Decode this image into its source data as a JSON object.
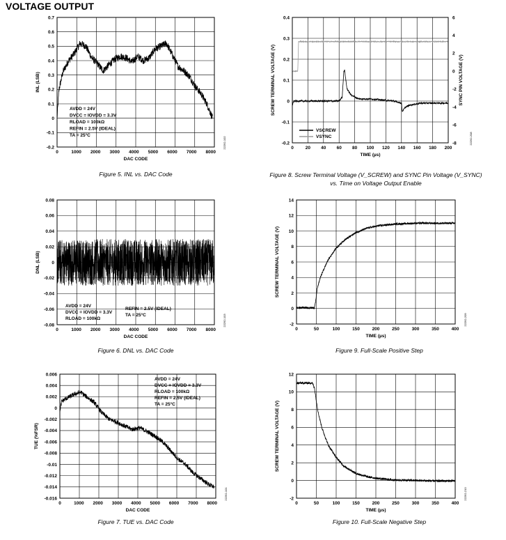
{
  "section_title": "VOLTAGE OUTPUT",
  "chart_data": [
    {
      "id": "fig5",
      "type": "line",
      "caption": "Figure 5. INL vs. DAC Code",
      "side_code": "22292-102",
      "xlabel": "DAC CODE",
      "ylabel": "INL (LSB)",
      "xlim": [
        0,
        8192
      ],
      "ylim": [
        -0.2,
        0.7
      ],
      "xticks": [
        0,
        1000,
        2000,
        3000,
        4000,
        5000,
        6000,
        7000,
        8000
      ],
      "yticks": [
        -0.2,
        -0.1,
        0,
        0.1,
        0.2,
        0.3,
        0.4,
        0.5,
        0.6,
        0.7
      ],
      "grid": true,
      "annotation": [
        "AVDD = 24V",
        "DVCC = IOVDD = 3.3V",
        "R_LOAD = 100kΩ",
        "REFIN = 2.5V (IDEAL)",
        "T_A = 25°C"
      ],
      "series": [
        {
          "x": [
            0,
            100,
            300,
            600,
            900,
            1200,
            1500,
            1800,
            2100,
            2400,
            2700,
            3000,
            3300,
            3600,
            3900,
            4200,
            4500,
            4800,
            5100,
            5400,
            5700,
            6000,
            6300,
            6600,
            6900,
            7200,
            7500,
            7800,
            8100
          ],
          "y": [
            0.0,
            0.2,
            0.32,
            0.4,
            0.45,
            0.52,
            0.5,
            0.42,
            0.38,
            0.33,
            0.37,
            0.41,
            0.43,
            0.42,
            0.39,
            0.43,
            0.4,
            0.42,
            0.48,
            0.5,
            0.52,
            0.44,
            0.36,
            0.33,
            0.29,
            0.22,
            0.17,
            0.1,
            0.0
          ],
          "noise": 0.025
        }
      ]
    },
    {
      "id": "fig6",
      "type": "line",
      "caption": "Figure 6. DNL vs. DAC Code",
      "side_code": "22292-103",
      "xlabel": "DAC CODE",
      "ylabel": "DNL (LSB)",
      "xlim": [
        0,
        8192
      ],
      "ylim": [
        -0.08,
        0.08
      ],
      "xticks": [
        0,
        1000,
        2000,
        3000,
        4000,
        5000,
        6000,
        7000,
        8000
      ],
      "yticks": [
        -0.08,
        -0.06,
        -0.04,
        -0.02,
        0,
        0.02,
        0.04,
        0.06,
        0.08
      ],
      "grid": true,
      "annotation_left": [
        "AVDD = 24V",
        "DVCC = IOVDD = 3.3V",
        "R_LOAD = 100kΩ"
      ],
      "annotation_right": [
        "REFIN = 2.5V (IDEAL)",
        "T_A = 25°C"
      ],
      "series": [
        {
          "x": [
            0,
            8192
          ],
          "y": [
            0,
            0
          ],
          "noise": 0.03
        }
      ]
    },
    {
      "id": "fig7",
      "type": "line",
      "caption": "Figure 7. TUE vs. DAC Code",
      "side_code": "22292-101",
      "xlabel": "DAC CODE",
      "ylabel": "TUE (%FSR)",
      "xlim": [
        0,
        8192
      ],
      "ylim": [
        -0.016,
        0.006
      ],
      "xticks": [
        0,
        1000,
        2000,
        3000,
        4000,
        5000,
        6000,
        7000,
        8000
      ],
      "yticks": [
        -0.016,
        -0.014,
        -0.012,
        -0.01,
        -0.008,
        -0.006,
        -0.004,
        -0.002,
        0,
        0.002,
        0.004,
        0.006
      ],
      "grid": true,
      "annotation": [
        "AVDD = 24V",
        "DVCC = IOVDD = 3.3V",
        "R_LOAD = 100kΩ",
        "REFIN = 2.5V (IDEAL)",
        "T_A = 25°C"
      ],
      "series": [
        {
          "x": [
            0,
            100,
            400,
            800,
            1100,
            1400,
            1800,
            2200,
            2600,
            3000,
            3400,
            3800,
            4200,
            4600,
            5000,
            5400,
            5800,
            6200,
            6600,
            7000,
            7400,
            7800,
            8100
          ],
          "y": [
            -0.0005,
            0.0012,
            0.0018,
            0.0025,
            0.0028,
            0.002,
            0.001,
            -0.0008,
            -0.002,
            -0.0025,
            -0.0032,
            -0.0038,
            -0.0035,
            -0.0042,
            -0.005,
            -0.006,
            -0.0075,
            -0.009,
            -0.01,
            -0.0115,
            -0.0125,
            -0.0135,
            -0.014
          ],
          "noise": 0.0004
        }
      ]
    },
    {
      "id": "fig8",
      "type": "line",
      "caption": "Figure 8. Screw Terminal Voltage (V_SCREW) and SYNC Pin Voltage (V_SYNC) vs. Time on Voltage Output Enable",
      "side_code": "22292-208",
      "xlabel": "TIME (µs)",
      "ylabel": "SCREW TERMINAL VOLTAGE (V)",
      "ylabel2": "SYNC PIN VOLTAGE (V)",
      "xlim": [
        0,
        200
      ],
      "ylim": [
        -0.2,
        0.4
      ],
      "ylim2": [
        -8,
        6
      ],
      "xticks": [
        0,
        20,
        40,
        60,
        80,
        100,
        120,
        140,
        160,
        180,
        200
      ],
      "yticks": [
        -0.2,
        -0.1,
        0,
        0.1,
        0.2,
        0.3,
        0.4
      ],
      "yticks2": [
        -8,
        -6,
        -4,
        -2,
        0,
        2,
        4,
        6
      ],
      "grid": true,
      "legend": [
        "V_SCREW",
        "V_SYNC"
      ],
      "legend_position": "bottom-left",
      "series": [
        {
          "name": "V_SCREW",
          "color": "#000000",
          "x": [
            0,
            2,
            60,
            64,
            66,
            67,
            70,
            75,
            85,
            100,
            130,
            140,
            141,
            145,
            150,
            165,
            200
          ],
          "y": [
            -0.02,
            0.0,
            0.0,
            0.02,
            0.14,
            0.15,
            0.06,
            0.03,
            0.01,
            0.01,
            0.0,
            -0.01,
            -0.05,
            -0.03,
            -0.02,
            -0.01,
            -0.01
          ],
          "noise": 0.004
        },
        {
          "name": "V_SYNC",
          "color": "#9a9a9a",
          "x": [
            0,
            7,
            8,
            200
          ],
          "y": [
            0,
            0,
            3.3,
            3.3
          ],
          "noise": 0.05,
          "axis": "right"
        }
      ]
    },
    {
      "id": "fig9",
      "type": "line",
      "caption": "Figure 9. Full-Scale Positive Step",
      "side_code": "22292-209",
      "xlabel": "TIME (µs)",
      "ylabel": "SCREW TERMINAL VOLTAGE (V)",
      "xlim": [
        0,
        400
      ],
      "ylim": [
        -2,
        14
      ],
      "xticks": [
        0,
        50,
        100,
        150,
        200,
        250,
        300,
        350,
        400
      ],
      "yticks": [
        -2,
        0,
        2,
        4,
        6,
        8,
        10,
        12,
        14
      ],
      "grid": true,
      "series": [
        {
          "x": [
            0,
            45,
            48,
            52,
            60,
            70,
            80,
            100,
            120,
            150,
            180,
            210,
            250,
            300,
            350,
            400
          ],
          "y": [
            0.1,
            0.1,
            0.8,
            2.5,
            4.0,
            5.2,
            6.3,
            7.8,
            8.8,
            9.8,
            10.4,
            10.7,
            10.9,
            11.0,
            11.0,
            11.0
          ],
          "noise": 0.12
        }
      ]
    },
    {
      "id": "fig10",
      "type": "line",
      "caption": "Figure 10. Full-Scale Negative Step",
      "side_code": "22292-210",
      "xlabel": "TIME (µs)",
      "ylabel": "SCREW TERMINAL VOLTAGE (V)",
      "xlim": [
        0,
        400
      ],
      "ylim": [
        -2,
        12
      ],
      "xticks": [
        0,
        50,
        100,
        150,
        200,
        250,
        300,
        350,
        400
      ],
      "yticks": [
        -2,
        0,
        2,
        4,
        6,
        8,
        10,
        12
      ],
      "grid": true,
      "series": [
        {
          "x": [
            0,
            40,
            45,
            50,
            55,
            65,
            80,
            100,
            120,
            150,
            180,
            210,
            250,
            300,
            350,
            400
          ],
          "y": [
            11.0,
            11.0,
            10.5,
            9.0,
            7.6,
            5.8,
            4.0,
            2.6,
            1.6,
            0.8,
            0.4,
            0.2,
            0.05,
            0.0,
            -0.05,
            -0.05
          ],
          "noise": 0.12
        }
      ]
    }
  ]
}
